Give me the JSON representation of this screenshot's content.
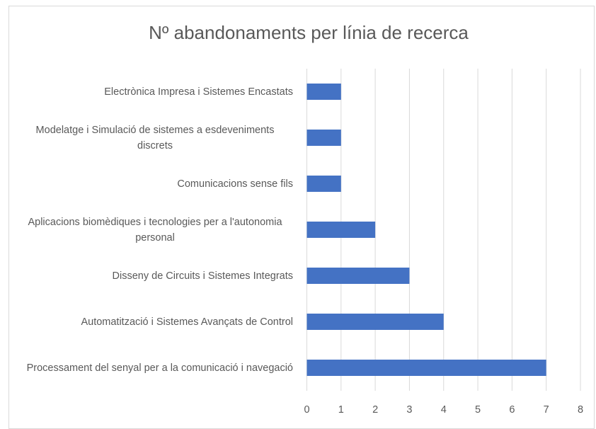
{
  "chart_data": {
    "type": "barh",
    "title": "Nº abandonaments per línia de recerca",
    "categories": [
      "Electrònica Impresa i Sistemes Encastats",
      "Modelatge i Simulació de sistemes a esdeveniments discrets",
      "Comunicacions sense fils",
      "Aplicacions biomèdiques i tecnologies per a l'autonomia personal",
      "Disseny de Circuits i Sistemes Integrats",
      "Automatització i Sistemes Avançats de Control",
      "Processament del senyal per a la comunicació i navegació"
    ],
    "values": [
      1,
      1,
      1,
      2,
      3,
      4,
      7
    ],
    "color": "#4472c4",
    "xlim": [
      0,
      8
    ],
    "xticks": [
      0,
      1,
      2,
      3,
      4,
      5,
      6,
      7,
      8
    ],
    "grid": true
  }
}
